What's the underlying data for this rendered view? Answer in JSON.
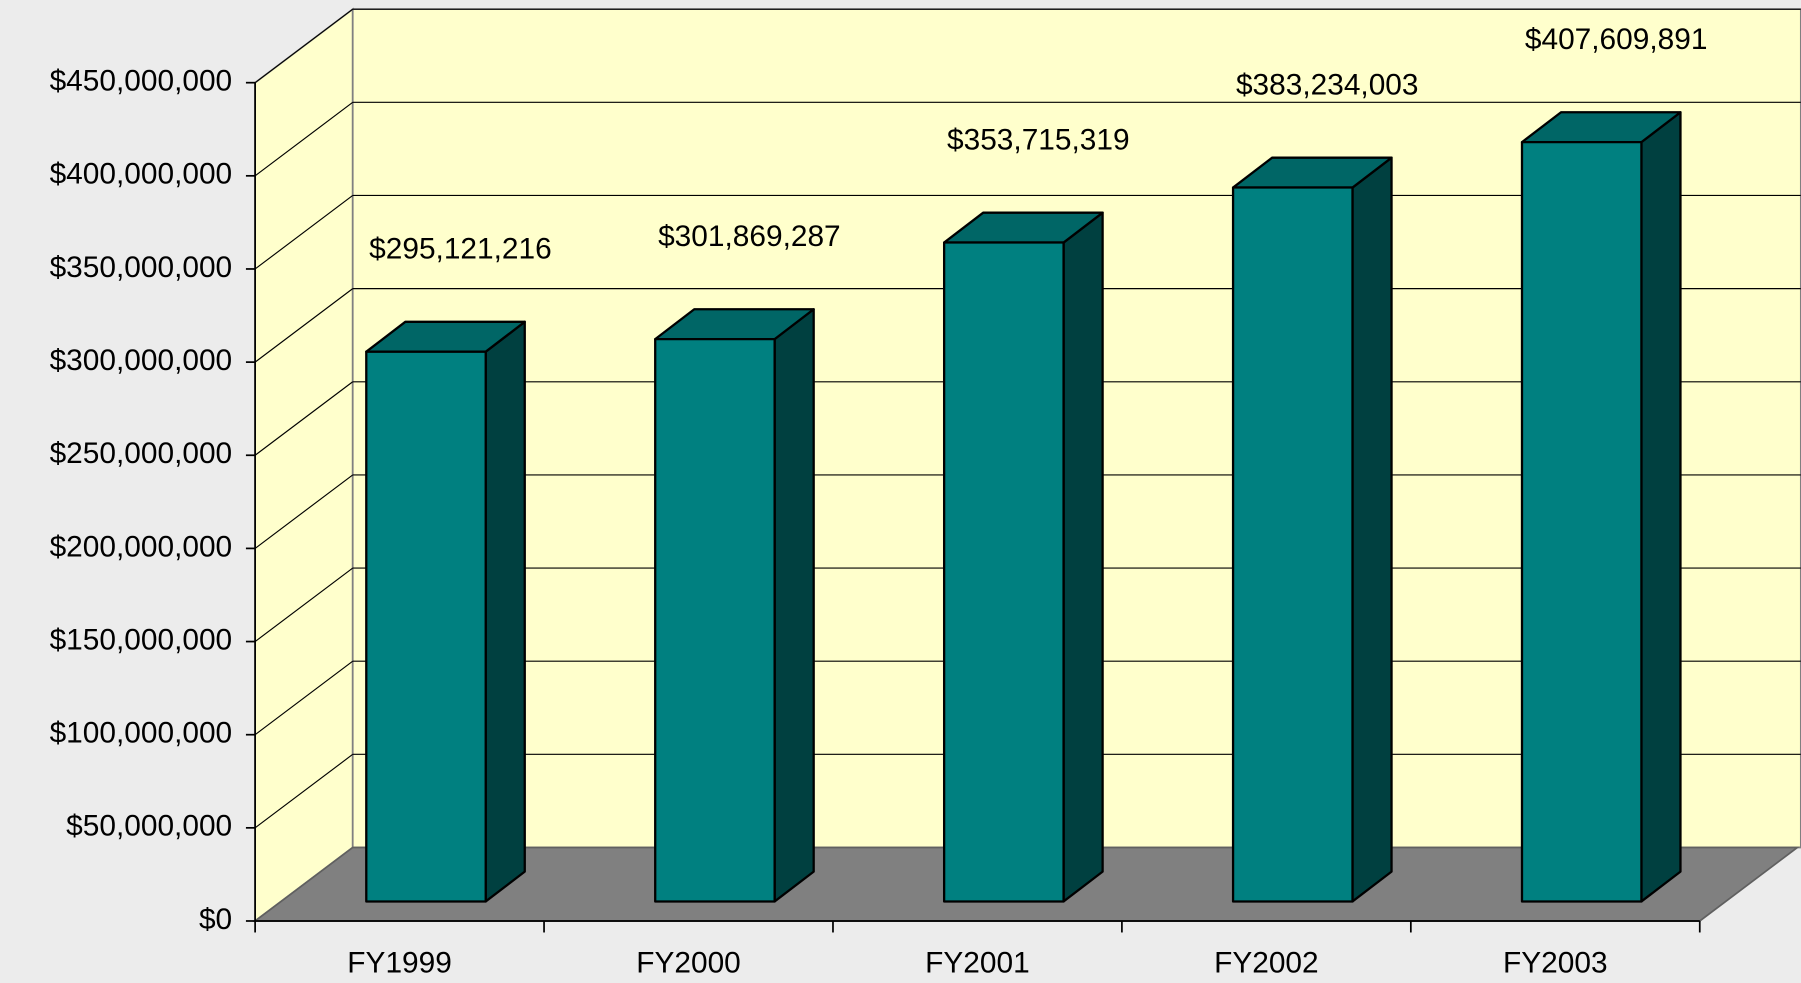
{
  "chart_data": {
    "type": "bar3d",
    "categories": [
      "FY1999",
      "FY2000",
      "FY2001",
      "FY2002",
      "FY2003"
    ],
    "values": [
      295121216,
      301869287,
      353715319,
      383234003,
      407609891
    ],
    "value_labels": [
      "$295,121,216",
      "$301,869,287",
      "$353,715,319",
      "$383,234,003",
      "$407,609,891"
    ],
    "color": "#008080",
    "ylim": [
      0,
      450000000
    ],
    "yticks": [
      {
        "value": 0,
        "label": "$0"
      },
      {
        "value": 50000000,
        "label": "$50,000,000"
      },
      {
        "value": 100000000,
        "label": "$100,000,000"
      },
      {
        "value": 150000000,
        "label": "$150,000,000"
      },
      {
        "value": 200000000,
        "label": "$200,000,000"
      },
      {
        "value": 250000000,
        "label": "$250,000,000"
      },
      {
        "value": 300000000,
        "label": "$300,000,000"
      },
      {
        "value": 350000000,
        "label": "$350,000,000"
      },
      {
        "value": 400000000,
        "label": "$400,000,000"
      },
      {
        "value": 450000000,
        "label": "$450,000,000"
      }
    ],
    "grid": true
  }
}
